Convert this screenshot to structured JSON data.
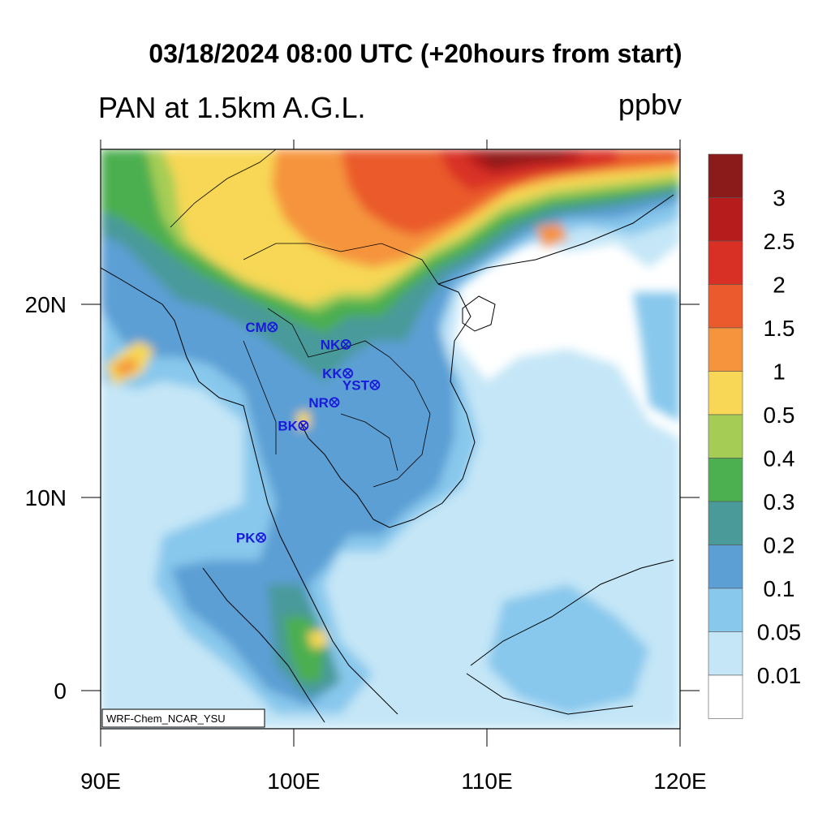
{
  "title": "03/18/2024 08:00 UTC (+20hours from start)",
  "variable_title": "PAN at 1.5km A.G.L.",
  "units": "ppbv",
  "credit": "WRF-Chem_NCAR_YSU",
  "lon_ticks": [
    "90E",
    "100E",
    "110E",
    "120E"
  ],
  "lat_ticks": [
    "20N",
    "10N",
    "0"
  ],
  "colorbar": {
    "labels": [
      "3",
      "2.5",
      "2",
      "1.5",
      "1",
      "0.5",
      "0.4",
      "0.3",
      "0.2",
      "0.1",
      "0.05",
      "0.01"
    ],
    "colors": [
      "#8b1a1a",
      "#b71c1c",
      "#d93025",
      "#ea5a2c",
      "#f5943c",
      "#f7d755",
      "#a5cd55",
      "#4caf50",
      "#4a9a9a",
      "#5b9fd4",
      "#88c8ec",
      "#c4e6f7",
      "#ffffff"
    ]
  },
  "stations": [
    {
      "name": "CM",
      "lon": 98.9,
      "lat": 18.8
    },
    {
      "name": "NK",
      "lon": 102.7,
      "lat": 17.9
    },
    {
      "name": "KK",
      "lon": 102.8,
      "lat": 16.4
    },
    {
      "name": "YST",
      "lon": 104.2,
      "lat": 15.8
    },
    {
      "name": "NR",
      "lon": 102.1,
      "lat": 14.9
    },
    {
      "name": "BK",
      "lon": 100.5,
      "lat": 13.7
    },
    {
      "name": "PK",
      "lon": 98.3,
      "lat": 7.9
    }
  ],
  "map_extent": {
    "lon": [
      90,
      120
    ],
    "lat": [
      -2,
      28
    ]
  }
}
